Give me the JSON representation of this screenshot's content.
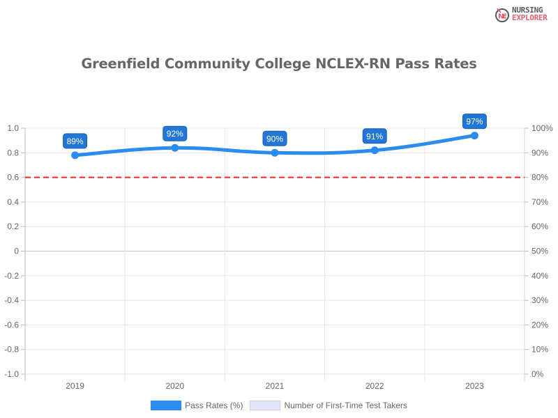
{
  "branding": {
    "logo_line1": "NURSING",
    "logo_line2": "EXPLORER",
    "logo_icon": "ne-monogram-icon"
  },
  "chart_data": {
    "type": "line",
    "title": "Greenfield Community College NCLEX-RN Pass Rates",
    "categories": [
      "2019",
      "2020",
      "2021",
      "2022",
      "2023"
    ],
    "series": [
      {
        "name": "Pass Rates (%)",
        "axis": "right",
        "values": [
          89,
          92,
          90,
          91,
          97
        ],
        "data_labels": [
          "89%",
          "92%",
          "90%",
          "91%",
          "97%"
        ],
        "color": "#2b8cf0",
        "smooth": true
      },
      {
        "name": "Number of First-Time Test Takers",
        "axis": "left",
        "values": [],
        "color": "#e3e6fa"
      }
    ],
    "reference_line": {
      "value": 80,
      "axis": "right",
      "color": "#e8282b",
      "style": "dashed"
    },
    "left_axis": {
      "ylim": [
        -1.0,
        1.0
      ],
      "ticks": [
        "1.0",
        "0.8",
        "0.6",
        "0.4",
        "0.2",
        "0",
        "-0.2",
        "-0.4",
        "-0.6",
        "-0.8",
        "-1.0"
      ]
    },
    "right_axis": {
      "ylim": [
        0,
        100
      ],
      "ticks": [
        "100%",
        "90%",
        "80%",
        "70%",
        "60%",
        "50%",
        "40%",
        "30%",
        "20%",
        "10%",
        "0%"
      ]
    },
    "xlabel": "",
    "ylabel": "",
    "grid": true,
    "legend_position": "bottom"
  },
  "legend": {
    "items": [
      {
        "label": "Pass Rates (%)",
        "color": "#2b8cf0"
      },
      {
        "label": "Number of First-Time Test Takers",
        "color": "#e3e6fa"
      }
    ]
  }
}
